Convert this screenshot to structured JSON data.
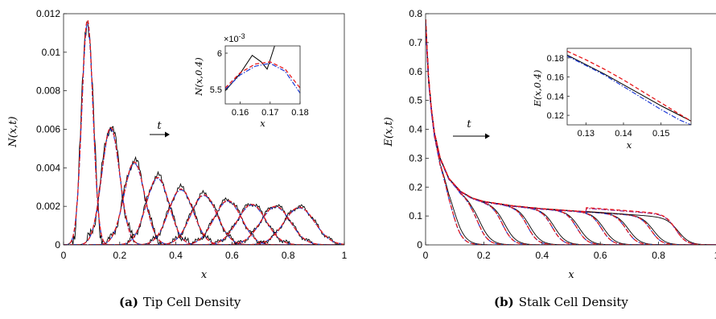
{
  "captions": {
    "a_label": "(a)",
    "a_text": "Tip Cell Density",
    "b_label": "(b)",
    "b_text": "Stalk Cell Density"
  },
  "colors": {
    "black": "#000000",
    "red": "#e8191c",
    "blue": "#1f3bd6",
    "purple": "#8a1a8a"
  },
  "chart_data": [
    {
      "type": "line",
      "panel": "a",
      "xlabel": "x",
      "ylabel": "N(x,t)",
      "xlim": [
        0,
        1
      ],
      "ylim": [
        0,
        0.012
      ],
      "xticks": [
        "0",
        "0.2",
        "0.4",
        "0.6",
        "0.8",
        "1"
      ],
      "yticks": [
        "0",
        "0.002",
        "0.004",
        "0.006",
        "0.008",
        "0.01",
        "0.012"
      ],
      "arrow_label": "t",
      "description_series": "stochastic (black, noisy), continuum (red dashed, blue dash-dot)",
      "peaks": [
        {
          "x": 0.085,
          "amp": 0.0117,
          "width": 0.02
        },
        {
          "x": 0.168,
          "amp": 0.0061,
          "width": 0.032
        },
        {
          "x": 0.252,
          "amp": 0.0043,
          "width": 0.037
        },
        {
          "x": 0.335,
          "amp": 0.0035,
          "width": 0.041
        },
        {
          "x": 0.418,
          "amp": 0.0029,
          "width": 0.044
        },
        {
          "x": 0.5,
          "amp": 0.0026,
          "width": 0.047
        },
        {
          "x": 0.585,
          "amp": 0.0023,
          "width": 0.049
        },
        {
          "x": 0.67,
          "amp": 0.0021,
          "width": 0.051
        },
        {
          "x": 0.755,
          "amp": 0.002,
          "width": 0.053
        },
        {
          "x": 0.84,
          "amp": 0.00195,
          "width": 0.055
        }
      ],
      "inset": {
        "xlabel": "x",
        "ylabel": "N(x,0.4)",
        "xlim": [
          0.155,
          0.18
        ],
        "ylim": [
          5.3,
          6.1
        ],
        "xticks": [
          "0.16",
          "0.17",
          "0.18"
        ],
        "yticks": [
          "5.5",
          "6"
        ],
        "exponent": "×10",
        "exponent_power": "-3",
        "black": [
          [
            0.155,
            5.48
          ],
          [
            0.16,
            5.72
          ],
          [
            0.164,
            5.97
          ],
          [
            0.167,
            5.88
          ],
          [
            0.169,
            5.78
          ],
          [
            0.1715,
            6.1
          ]
        ],
        "red": [
          [
            0.155,
            5.52
          ],
          [
            0.16,
            5.73
          ],
          [
            0.165,
            5.85
          ],
          [
            0.17,
            5.88
          ],
          [
            0.175,
            5.78
          ],
          [
            0.18,
            5.52
          ]
        ],
        "blue": [
          [
            0.155,
            5.5
          ],
          [
            0.16,
            5.7
          ],
          [
            0.165,
            5.82
          ],
          [
            0.17,
            5.86
          ],
          [
            0.175,
            5.75
          ],
          [
            0.18,
            5.45
          ]
        ]
      }
    },
    {
      "type": "line",
      "panel": "b",
      "xlabel": "x",
      "ylabel": "E(x,t)",
      "xlim": [
        0,
        1
      ],
      "ylim": [
        0,
        0.8
      ],
      "xticks": [
        "0",
        "0.2",
        "0.4",
        "0.6",
        "0.8",
        "1"
      ],
      "yticks": [
        "0",
        "0.1",
        "0.2",
        "0.3",
        "0.4",
        "0.5",
        "0.6",
        "0.7",
        "0.8"
      ],
      "arrow_label": "t",
      "fronts": [
        0.095,
        0.18,
        0.265,
        0.35,
        0.435,
        0.52,
        0.605,
        0.69,
        0.775,
        0.86
      ],
      "envelope": [
        [
          0,
          0.78
        ],
        [
          0.01,
          0.58
        ],
        [
          0.02,
          0.47
        ],
        [
          0.03,
          0.39
        ],
        [
          0.05,
          0.3
        ],
        [
          0.08,
          0.23
        ],
        [
          0.12,
          0.185
        ],
        [
          0.16,
          0.162
        ],
        [
          0.2,
          0.15
        ],
        [
          0.3,
          0.135
        ],
        [
          0.4,
          0.125
        ],
        [
          0.5,
          0.118
        ],
        [
          0.6,
          0.112
        ],
        [
          0.7,
          0.105
        ],
        [
          0.8,
          0.098
        ],
        [
          0.86,
          0.094
        ],
        [
          1,
          0.085
        ]
      ],
      "inset": {
        "xlabel": "x",
        "ylabel": "E(x,0.4)",
        "xlim": [
          0.125,
          0.158
        ],
        "ylim": [
          0.11,
          0.19
        ],
        "xticks": [
          "0.13",
          "0.14",
          "0.15"
        ],
        "yticks": [
          "0.12",
          "0.14",
          "0.16",
          "0.18"
        ],
        "black": [
          [
            0.125,
            0.183
          ],
          [
            0.13,
            0.173
          ],
          [
            0.135,
            0.163
          ],
          [
            0.14,
            0.152
          ],
          [
            0.145,
            0.141
          ],
          [
            0.15,
            0.13
          ],
          [
            0.155,
            0.12
          ],
          [
            0.158,
            0.114
          ]
        ],
        "red": [
          [
            0.125,
            0.187
          ],
          [
            0.13,
            0.178
          ],
          [
            0.135,
            0.168
          ],
          [
            0.14,
            0.157
          ],
          [
            0.145,
            0.145
          ],
          [
            0.15,
            0.133
          ],
          [
            0.155,
            0.121
          ],
          [
            0.158,
            0.114
          ]
        ],
        "blue": [
          [
            0.125,
            0.182
          ],
          [
            0.13,
            0.172
          ],
          [
            0.135,
            0.162
          ],
          [
            0.14,
            0.15
          ],
          [
            0.145,
            0.138
          ],
          [
            0.15,
            0.126
          ],
          [
            0.155,
            0.115
          ],
          [
            0.158,
            0.11
          ]
        ]
      }
    }
  ]
}
